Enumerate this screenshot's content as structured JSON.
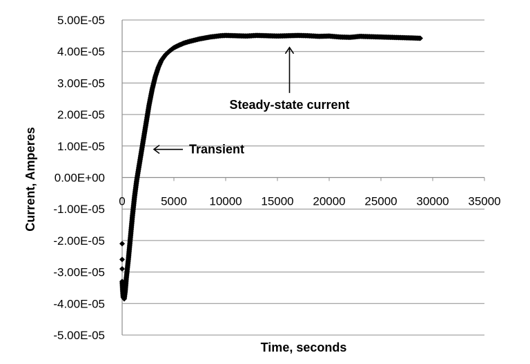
{
  "chart_data": {
    "type": "scatter",
    "title": "",
    "xlabel": "Time, seconds",
    "ylabel": "Current, Amperes",
    "xlim": [
      0,
      35000
    ],
    "ylim": [
      -5e-05,
      5e-05
    ],
    "x_ticks": [
      0,
      5000,
      10000,
      15000,
      20000,
      25000,
      30000,
      35000
    ],
    "x_tick_labels": [
      "0",
      "5000",
      "10000",
      "15000",
      "20000",
      "25000",
      "30000",
      "35000"
    ],
    "y_ticks": [
      5e-05,
      4e-05,
      3e-05,
      2e-05,
      1e-05,
      0,
      -1e-05,
      -2e-05,
      -3e-05,
      -4e-05,
      -5e-05
    ],
    "y_tick_labels": [
      "5.00E-05",
      "4.00E-05",
      "3.00E-05",
      "2.00E-05",
      "1.00E-05",
      "0.00E+00",
      "-1.00E-05",
      "-2.00E-05",
      "-3.00E-05",
      "-4.00E-05",
      "-5.00E-05"
    ],
    "grid": "horizontal",
    "legend": "none",
    "marker": "diamond",
    "marker_color": "#000000",
    "series": [
      {
        "x": [
          0,
          0,
          0,
          0,
          50,
          100,
          200,
          300,
          400,
          600,
          800,
          1000,
          1200,
          1400,
          1600,
          1800,
          2000,
          2300,
          2600,
          2900,
          3200,
          3500,
          3800,
          4200,
          4600,
          5000,
          5500,
          6000,
          6500,
          7000,
          7500,
          8000,
          8500,
          9000,
          9500,
          10000,
          11000,
          12000,
          13000,
          14000,
          15000,
          16000,
          17000,
          18000,
          19000,
          20000,
          21000,
          22000,
          23000,
          24000,
          25000,
          26000,
          27000,
          28000,
          28800
        ],
        "y": [
          -2.1e-05,
          -2.6e-05,
          -2.9e-05,
          -3.3e-05,
          -3.6e-05,
          -3.8e-05,
          -3.85e-05,
          -3.6e-05,
          -3.2e-05,
          -2.6e-05,
          -1.9e-05,
          -1.2e-05,
          -6e-06,
          -1e-06,
          3e-06,
          7e-06,
          1.1e-05,
          1.7e-05,
          2.3e-05,
          2.8e-05,
          3.2e-05,
          3.5e-05,
          3.72e-05,
          3.9e-05,
          4.02e-05,
          4.12e-05,
          4.2e-05,
          4.27e-05,
          4.32e-05,
          4.36e-05,
          4.4e-05,
          4.43e-05,
          4.46e-05,
          4.48e-05,
          4.5e-05,
          4.51e-05,
          4.5e-05,
          4.49e-05,
          4.51e-05,
          4.5e-05,
          4.49e-05,
          4.5e-05,
          4.51e-05,
          4.5e-05,
          4.48e-05,
          4.49e-05,
          4.46e-05,
          4.45e-05,
          4.48e-05,
          4.47e-05,
          4.46e-05,
          4.45e-05,
          4.44e-05,
          4.43e-05,
          4.42e-05
        ]
      }
    ],
    "annotations": [
      {
        "text": "Transient",
        "arrow": "left",
        "target": [
          2000,
          5e-06
        ]
      },
      {
        "text": "Steady-state current",
        "arrow": "up",
        "target": [
          16500,
          4.5e-05
        ]
      }
    ]
  }
}
